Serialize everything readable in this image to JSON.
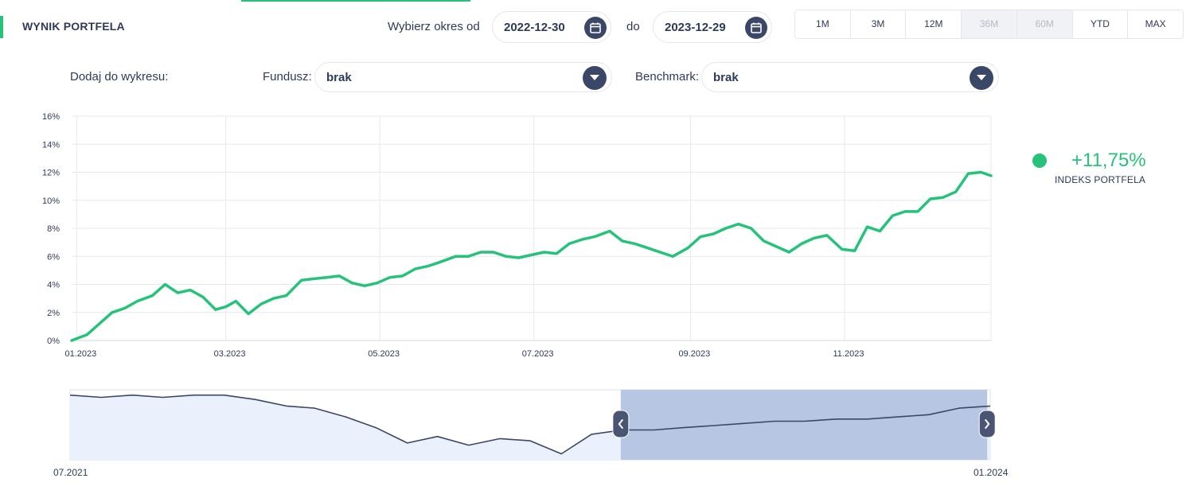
{
  "header": {
    "title": "WYNIK PORTFELA",
    "period_from_label": "Wybierz okres od",
    "date_from": "2022-12-30",
    "period_to_label": "do",
    "date_to": "2023-12-29",
    "ranges": [
      {
        "label": "1M",
        "disabled": false
      },
      {
        "label": "3M",
        "disabled": false
      },
      {
        "label": "12M",
        "disabled": false
      },
      {
        "label": "36M",
        "disabled": true
      },
      {
        "label": "60M",
        "disabled": true
      },
      {
        "label": "YTD",
        "disabled": false
      },
      {
        "label": "MAX",
        "disabled": false
      }
    ]
  },
  "add_to_chart": {
    "label": "Dodaj do wykresu:",
    "fund_label": "Fundusz:",
    "fund_value": "brak",
    "benchmark_label": "Benchmark:",
    "benchmark_value": "brak"
  },
  "legend": {
    "value": "+11,75%",
    "name": "INDEKS PORTFELA",
    "color": "#27c27a"
  },
  "navigator": {
    "start_label": "07.2021",
    "end_label": "01.2024",
    "line_color": "#3b4766",
    "selected_fill": "#b7c6e3",
    "unselected_fill": "#eaf1fc"
  },
  "icons": {
    "calendar": "calendar-icon",
    "dropdown": "chevron-down-icon",
    "nav_left": "chevron-left-icon",
    "nav_right": "chevron-right-icon"
  },
  "chart_data": {
    "type": "line",
    "y_tick_labels": [
      "0%",
      "2%",
      "4%",
      "6%",
      "8%",
      "10%",
      "12%",
      "14%",
      "16%"
    ],
    "ylim": [
      0,
      16
    ],
    "x_tick_labels": [
      "01.2023",
      "03.2023",
      "05.2023",
      "07.2023",
      "09.2023",
      "11.2023"
    ],
    "grid": true,
    "legend_position": "right",
    "series": [
      {
        "name": "INDEKS PORTFELA",
        "color": "#27c27a",
        "x": [
          "2022-12-30",
          "2023-01-05",
          "2023-01-10",
          "2023-01-15",
          "2023-01-20",
          "2023-01-25",
          "2023-01-31",
          "2023-02-05",
          "2023-02-10",
          "2023-02-15",
          "2023-02-20",
          "2023-02-25",
          "2023-03-01",
          "2023-03-05",
          "2023-03-10",
          "2023-03-15",
          "2023-03-20",
          "2023-03-25",
          "2023-03-31",
          "2023-04-05",
          "2023-04-10",
          "2023-04-15",
          "2023-04-20",
          "2023-04-25",
          "2023-04-30",
          "2023-05-05",
          "2023-05-10",
          "2023-05-15",
          "2023-05-20",
          "2023-05-25",
          "2023-05-31",
          "2023-06-05",
          "2023-06-10",
          "2023-06-15",
          "2023-06-20",
          "2023-06-25",
          "2023-06-30",
          "2023-07-05",
          "2023-07-10",
          "2023-07-15",
          "2023-07-20",
          "2023-07-25",
          "2023-07-31",
          "2023-08-05",
          "2023-08-10",
          "2023-08-15",
          "2023-08-20",
          "2023-08-25",
          "2023-08-31",
          "2023-09-05",
          "2023-09-10",
          "2023-09-15",
          "2023-09-20",
          "2023-09-25",
          "2023-09-30",
          "2023-10-05",
          "2023-10-10",
          "2023-10-15",
          "2023-10-20",
          "2023-10-25",
          "2023-10-31",
          "2023-11-05",
          "2023-11-10",
          "2023-11-15",
          "2023-11-20",
          "2023-11-25",
          "2023-11-30",
          "2023-12-05",
          "2023-12-10",
          "2023-12-15",
          "2023-12-20",
          "2023-12-25",
          "2023-12-29"
        ],
        "values": [
          0.0,
          0.4,
          1.2,
          2.0,
          2.3,
          2.8,
          3.2,
          4.0,
          3.4,
          3.6,
          3.1,
          2.2,
          2.4,
          2.8,
          1.9,
          2.6,
          3.0,
          3.2,
          4.3,
          4.4,
          4.5,
          4.6,
          4.1,
          3.9,
          4.1,
          4.5,
          4.6,
          5.1,
          5.3,
          5.6,
          6.0,
          6.0,
          6.3,
          6.3,
          6.0,
          5.9,
          6.1,
          6.3,
          6.2,
          6.9,
          7.2,
          7.4,
          7.8,
          7.1,
          6.9,
          6.6,
          6.3,
          6.0,
          6.6,
          7.4,
          7.6,
          8.0,
          8.3,
          8.0,
          7.1,
          6.7,
          6.3,
          6.9,
          7.3,
          7.5,
          6.5,
          6.4,
          8.1,
          7.8,
          8.9,
          9.2,
          9.2,
          10.1,
          10.2,
          10.6,
          11.9,
          12.0,
          11.75
        ]
      }
    ]
  },
  "navigator_data": {
    "type": "line",
    "x": [
      "2021-07",
      "2021-08",
      "2021-09",
      "2021-10",
      "2021-11",
      "2021-12",
      "2022-01",
      "2022-02",
      "2022-03",
      "2022-04",
      "2022-05",
      "2022-06",
      "2022-07",
      "2022-08",
      "2022-09",
      "2022-10",
      "2022-11",
      "2022-12",
      "2023-01",
      "2023-02",
      "2023-03",
      "2023-04",
      "2023-05",
      "2023-06",
      "2023-07",
      "2023-08",
      "2023-09",
      "2023-10",
      "2023-11",
      "2023-12",
      "2024-01"
    ],
    "values": [
      100,
      99,
      100,
      99,
      100,
      100,
      98,
      95,
      94,
      90,
      85,
      78,
      81,
      77,
      80,
      79,
      73,
      82,
      84,
      84,
      85,
      86,
      87,
      88,
      88,
      89,
      89,
      90,
      91,
      94,
      95
    ],
    "selected_from": "2022-12-30",
    "selected_to": "2023-12-29"
  }
}
